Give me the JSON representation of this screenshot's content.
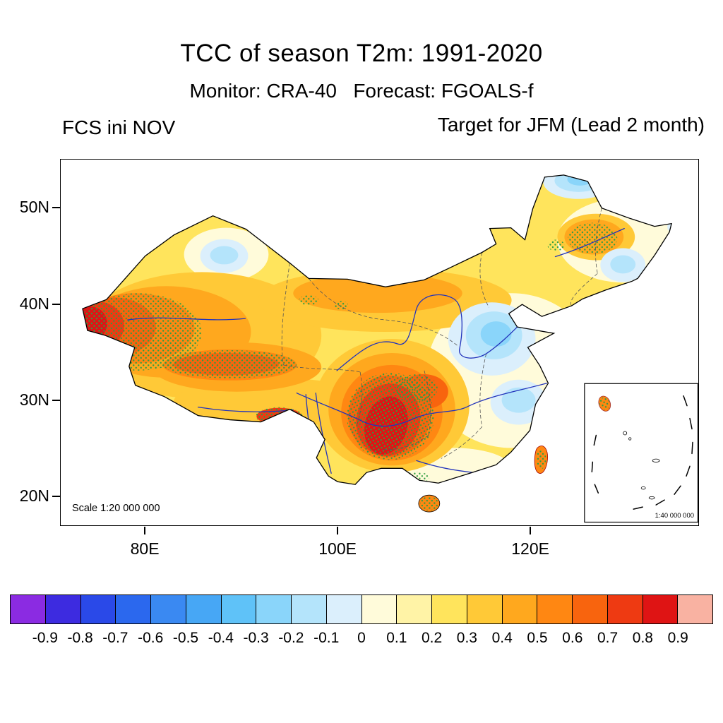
{
  "titles": {
    "main": "TCC of season T2m: 1991-2020",
    "subtitle": "Monitor: CRA-40   Forecast: FGOALS-f",
    "left_annotation": "FCS ini NOV",
    "right_annotation": "Target for JFM (Lead 2 month)"
  },
  "map": {
    "scale_label": "Scale 1:20 000 000",
    "inset_scale_label": "1:40 000 000",
    "y_tick_labels": [
      "50N",
      "40N",
      "30N",
      "20N"
    ],
    "x_tick_labels": [
      "80E",
      "100E",
      "120E"
    ],
    "stipple_color": "#2f9e41",
    "river_color": "#2233bb"
  },
  "colorbar": {
    "tick_labels": [
      "-0.9",
      "-0.8",
      "-0.7",
      "-0.6",
      "-0.5",
      "-0.4",
      "-0.3",
      "-0.2",
      "-0.1",
      "0",
      "0.1",
      "0.2",
      "0.3",
      "0.4",
      "0.5",
      "0.6",
      "0.7",
      "0.8",
      "0.9"
    ],
    "colors": [
      "#8b2be2",
      "#3d2be0",
      "#2a49e8",
      "#2b68ee",
      "#3a89f2",
      "#47a7f5",
      "#5fc2f8",
      "#8ad5fa",
      "#b4e4fb",
      "#dbeffc",
      "#fffbda",
      "#fff3a6",
      "#ffe45c",
      "#ffc937",
      "#ffa81e",
      "#ff8712",
      "#f8640e",
      "#ee3a12",
      "#df1414",
      "#f9b2a2"
    ]
  },
  "chart_data": {
    "type": "heatmap",
    "title": "TCC of season T2m: 1991-2020",
    "subtitle": "Monitor: CRA-40   Forecast: FGOALS-f",
    "annotations": [
      "FCS ini NOV",
      "Target for JFM (Lead 2 month)",
      "Scale 1:20 000 000",
      "1:40 000 000"
    ],
    "x_axis": {
      "tick_labels": [
        "80E",
        "100E",
        "120E"
      ],
      "range_deg_east": [
        71,
        138
      ]
    },
    "y_axis": {
      "tick_labels": [
        "50N",
        "40N",
        "30N",
        "20N"
      ],
      "range_deg_north": [
        17,
        55
      ]
    },
    "colorbar_levels": [
      -0.9,
      -0.8,
      -0.7,
      -0.6,
      -0.5,
      -0.4,
      -0.3,
      -0.2,
      -0.1,
      0,
      0.1,
      0.2,
      0.3,
      0.4,
      0.5,
      0.6,
      0.7,
      0.8,
      0.9
    ],
    "colorbar_colors": [
      "#8b2be2",
      "#3d2be0",
      "#2a49e8",
      "#2b68ee",
      "#3a89f2",
      "#47a7f5",
      "#5fc2f8",
      "#8ad5fa",
      "#b4e4fb",
      "#dbeffc",
      "#fffbda",
      "#fff3a6",
      "#ffe45c",
      "#ffc937",
      "#ffa81e",
      "#ff8712",
      "#f8640e",
      "#ee3a12",
      "#df1414",
      "#f9b2a2"
    ],
    "legend_position": "bottom colorbar",
    "grid": false,
    "regions": [
      {
        "area": "western Xinjiang border",
        "tcc_estimate": "0.6 to 0.9",
        "stippled": true
      },
      {
        "area": "southern Tarim basin rim / Kunlun",
        "tcc_estimate": "0.5 to 0.8",
        "stippled": true
      },
      {
        "area": "southwest China (Sichuan-Yunnan)",
        "tcc_estimate": "0.6 to 0.9",
        "stippled": true
      },
      {
        "area": "northern Xinjiang",
        "tcc_estimate": "-0.2 to 0",
        "stippled": false
      },
      {
        "area": "central China (Shanxi-Henan)",
        "tcc_estimate": "-0.3 to -0.1",
        "stippled": false
      },
      {
        "area": "Hubei area",
        "tcc_estimate": "-0.2 to 0",
        "stippled": false
      },
      {
        "area": "northernmost Heilongjiang",
        "tcc_estimate": "-0.3 to -0.1",
        "stippled": false
      },
      {
        "area": "Inner Mongolia / northern China belt",
        "tcc_estimate": "0.3 to 0.5",
        "stippled": false
      },
      {
        "area": "northeast China patch",
        "tcc_estimate": "0.4 to 0.6",
        "stippled": true
      },
      {
        "area": "eastern coastal China",
        "tcc_estimate": "0 to 0.2",
        "stippled": false
      },
      {
        "area": "Hainan and Taiwan",
        "tcc_estimate": "0.5 to 0.7",
        "stippled": true
      }
    ]
  }
}
